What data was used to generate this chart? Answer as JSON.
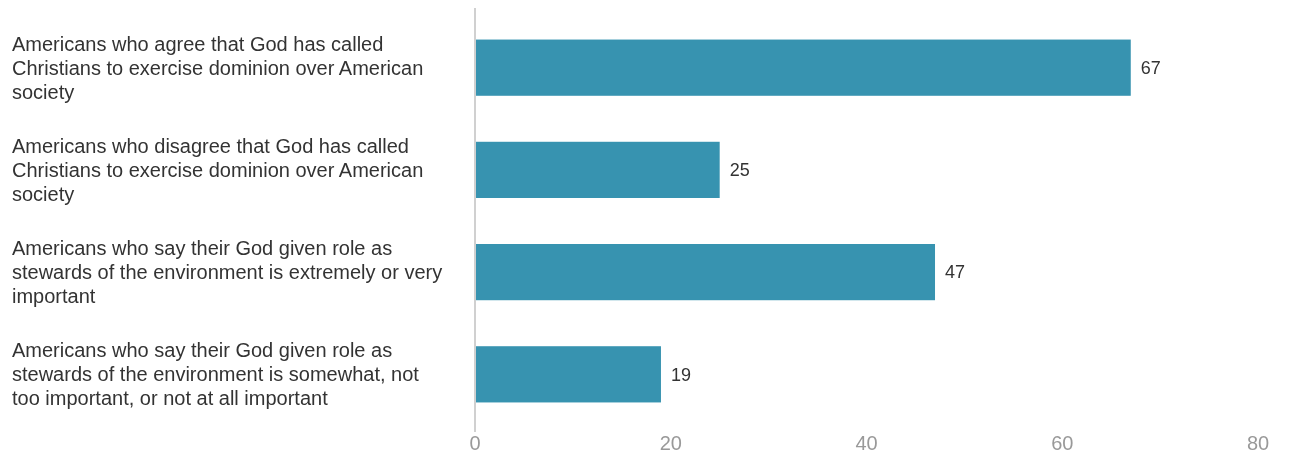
{
  "chart_data": {
    "type": "bar",
    "orientation": "horizontal",
    "categories": [
      "Americans who agree that God has called Christians to exercise dominion over American society",
      "Americans who disagree that God has called Christians to exercise dominion over American society",
      "Americans who say their God given role as stewards of the environment is extremely or very important",
      "Americans who say their God given role as stewards of the environment is somewhat, not too important, or not at all important"
    ],
    "values": [
      67,
      25,
      47,
      19
    ],
    "color": "#3793b0",
    "xlim": [
      0,
      80
    ],
    "xticks": [
      0,
      20,
      40,
      60,
      80
    ],
    "data_labels": true
  }
}
